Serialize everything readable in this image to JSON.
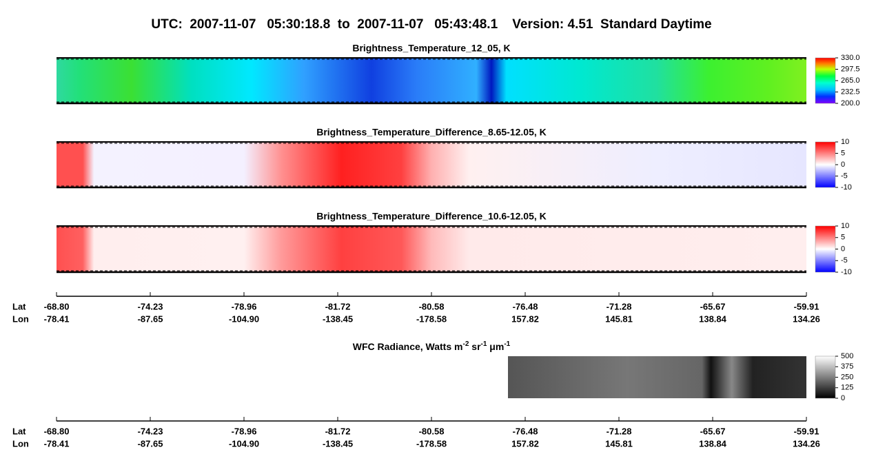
{
  "header": {
    "title": "UTC:  2007-11-07   05:30:18.8  to  2007-11-07   05:43:48.1    Version: 4.51  Standard Daytime"
  },
  "chart_data": [
    {
      "type": "heatmap",
      "title": "Brightness_Temperature_12_05, K",
      "clim": [
        200,
        330
      ],
      "cticks": [
        {
          "value": 200,
          "label": "200.0"
        },
        {
          "value": 232.5,
          "label": "232.5"
        },
        {
          "value": 265,
          "label": "265.0"
        },
        {
          "value": 297.5,
          "label": "297.5"
        },
        {
          "value": 330,
          "label": "330.0"
        }
      ]
    },
    {
      "type": "heatmap",
      "title": "Brightness_Temperature_Difference_8.65-12.05, K",
      "clim": [
        -10,
        10
      ],
      "cticks": [
        -10,
        -5,
        0,
        5,
        10
      ]
    },
    {
      "type": "heatmap",
      "title": "Brightness_Temperature_Difference_10.6-12.05, K",
      "clim": [
        -10,
        10
      ],
      "cticks": [
        -10,
        -5,
        0,
        5,
        10
      ]
    },
    {
      "type": "heatmap",
      "title": [
        "WFC Radiance, Watts m",
        "-2",
        " sr",
        "-1",
        " μm",
        "-1"
      ],
      "clim": [
        0,
        500
      ],
      "cticks": [
        0,
        125,
        250,
        375,
        500
      ]
    }
  ],
  "axis": {
    "row_labels": [
      "Lat",
      "Lon"
    ],
    "lat": [
      "-68.80",
      "-74.23",
      "-78.96",
      "-81.72",
      "-80.58",
      "-76.48",
      "-71.28",
      "-65.67",
      "-59.91"
    ],
    "lon": [
      "-78.41",
      "-87.65",
      "-104.90",
      "-138.45",
      "-178.58",
      "157.82",
      "145.81",
      "138.84",
      "134.26"
    ]
  }
}
